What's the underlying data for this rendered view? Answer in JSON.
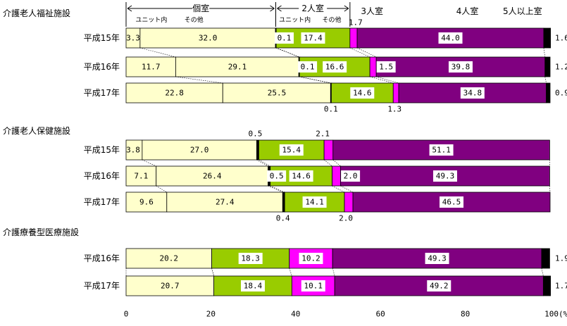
{
  "chart_data": {
    "type": "bar",
    "orientation": "horizontal",
    "stacked": true,
    "xlim": [
      0,
      100
    ],
    "x_ticks": [
      "0",
      "20",
      "40",
      "60",
      "80",
      "100(%)"
    ],
    "legend": {
      "private": "個室",
      "double": "2人室",
      "triple": "3人室",
      "quad": "4人室",
      "five_plus": "5人以上室",
      "unit": "ユニット内",
      "other": "その他"
    },
    "segment_colors": [
      "#FFFFCC",
      "#FFFFCC",
      "#000000",
      "#99CC00",
      "#FF00FF",
      "#800080",
      "#000000"
    ],
    "facilities": [
      {
        "name": "介護老人福祉施設",
        "rows": [
          {
            "year": "平成15年",
            "values": [
              3.3,
              32.0,
              0.1,
              17.4,
              1.7,
              44.0,
              1.6
            ]
          },
          {
            "year": "平成16年",
            "values": [
              11.7,
              29.1,
              0.1,
              16.6,
              1.5,
              39.8,
              1.2
            ]
          },
          {
            "year": "平成17年",
            "values": [
              22.8,
              25.5,
              0.1,
              14.6,
              1.3,
              34.8,
              0.9
            ]
          }
        ]
      },
      {
        "name": "介護老人保健施設",
        "rows": [
          {
            "year": "平成15年",
            "values": [
              3.8,
              27.0,
              0.5,
              15.4,
              2.1,
              51.1,
              0
            ]
          },
          {
            "year": "平成16年",
            "values": [
              7.1,
              26.4,
              0.5,
              14.6,
              2.0,
              49.3,
              0
            ]
          },
          {
            "year": "平成17年",
            "values": [
              9.6,
              27.4,
              0.4,
              14.1,
              2.0,
              46.5,
              0
            ]
          }
        ]
      },
      {
        "name": "介護療養型医療施設",
        "rows": [
          {
            "year": "平成16年",
            "values": [
              0,
              20.2,
              0,
              18.3,
              10.2,
              49.3,
              1.9
            ]
          },
          {
            "year": "平成17年",
            "values": [
              0,
              20.7,
              0,
              18.4,
              10.1,
              49.2,
              1.7
            ]
          }
        ]
      }
    ]
  }
}
